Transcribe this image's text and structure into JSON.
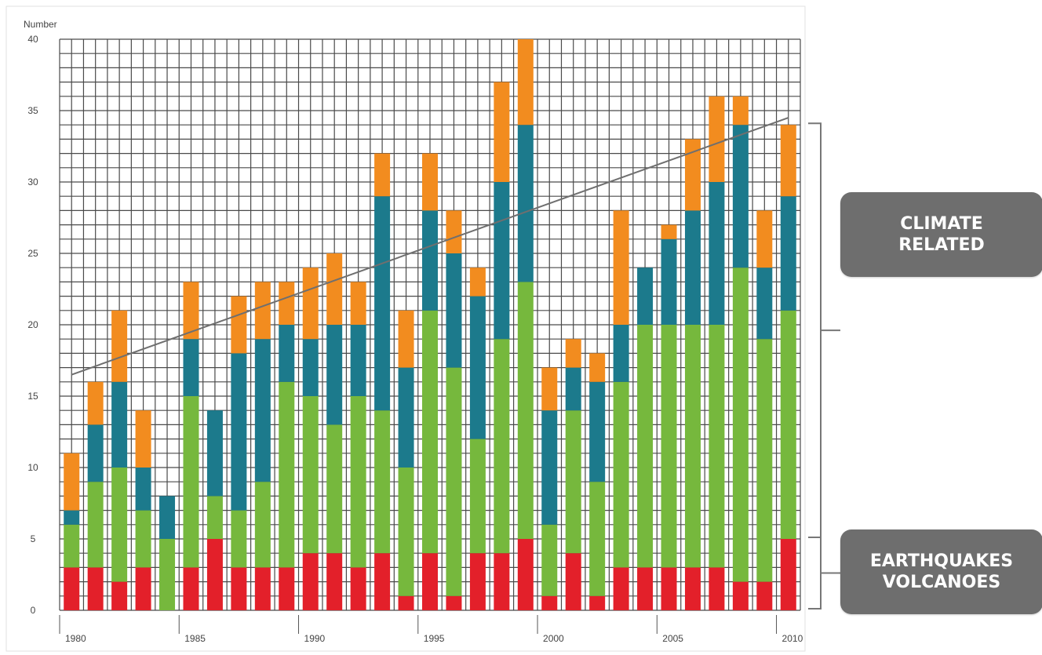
{
  "chart_data": {
    "type": "bar",
    "stacked": true,
    "ylabel": "Number",
    "xlabel": "",
    "title": "",
    "ylim": [
      0,
      40
    ],
    "y_ticks": [
      0,
      5,
      10,
      15,
      20,
      25,
      30,
      35,
      40
    ],
    "x_tick_labels": [
      "1980",
      "1985",
      "1990",
      "1995",
      "2000",
      "2005",
      "2010"
    ],
    "grid": true,
    "categories": [
      1980,
      1981,
      1982,
      1983,
      1984,
      1985,
      1986,
      1987,
      1988,
      1989,
      1990,
      1991,
      1992,
      1993,
      1994,
      1995,
      1996,
      1997,
      1998,
      1999,
      2000,
      2001,
      2002,
      2003,
      2004,
      2005,
      2006,
      2007,
      2008,
      2009,
      2010
    ],
    "series": [
      {
        "color": "#e3202a",
        "values": [
          3,
          3,
          2,
          3,
          0,
          3,
          5,
          3,
          3,
          3,
          4,
          4,
          3,
          4,
          1,
          4,
          1,
          4,
          4,
          5,
          1,
          4,
          1,
          3,
          3,
          3,
          3,
          3,
          2,
          2,
          5
        ]
      },
      {
        "color": "#76b83d",
        "values": [
          3,
          6,
          8,
          4,
          5,
          12,
          3,
          4,
          6,
          13,
          11,
          9,
          12,
          10,
          9,
          17,
          16,
          8,
          15,
          18,
          5,
          10,
          8,
          13,
          17,
          17,
          17,
          17,
          22,
          17,
          16
        ]
      },
      {
        "color": "#1c7a8c",
        "values": [
          1,
          4,
          6,
          3,
          3,
          4,
          6,
          11,
          10,
          4,
          4,
          7,
          5,
          15,
          7,
          7,
          8,
          10,
          11,
          11,
          8,
          3,
          7,
          4,
          4,
          6,
          8,
          10,
          10,
          5,
          8
        ]
      },
      {
        "color": "#f28c1f",
        "values": [
          4,
          3,
          5,
          4,
          0,
          4,
          0,
          4,
          4,
          3,
          5,
          5,
          3,
          3,
          4,
          4,
          3,
          2,
          7,
          6,
          3,
          2,
          2,
          8,
          0,
          1,
          5,
          6,
          2,
          4,
          5
        ]
      }
    ],
    "trend_line": {
      "from": [
        1980,
        16.5
      ],
      "to": [
        2010,
        34.5
      ],
      "color": "#6f6f6f"
    },
    "brackets": [
      {
        "from": 5,
        "to": 34,
        "label_key": "callouts.climate"
      },
      {
        "from": 0,
        "to": 5,
        "label_key": "callouts.geo"
      }
    ]
  },
  "callouts": {
    "climate": {
      "line1": "CLIMATE",
      "line2": "RELATED",
      "bg": "#6e6e6e"
    },
    "geo": {
      "line1": "EARTHQUAKES",
      "line2": "VOLCANOES",
      "bg": "#6e6e6e"
    }
  }
}
